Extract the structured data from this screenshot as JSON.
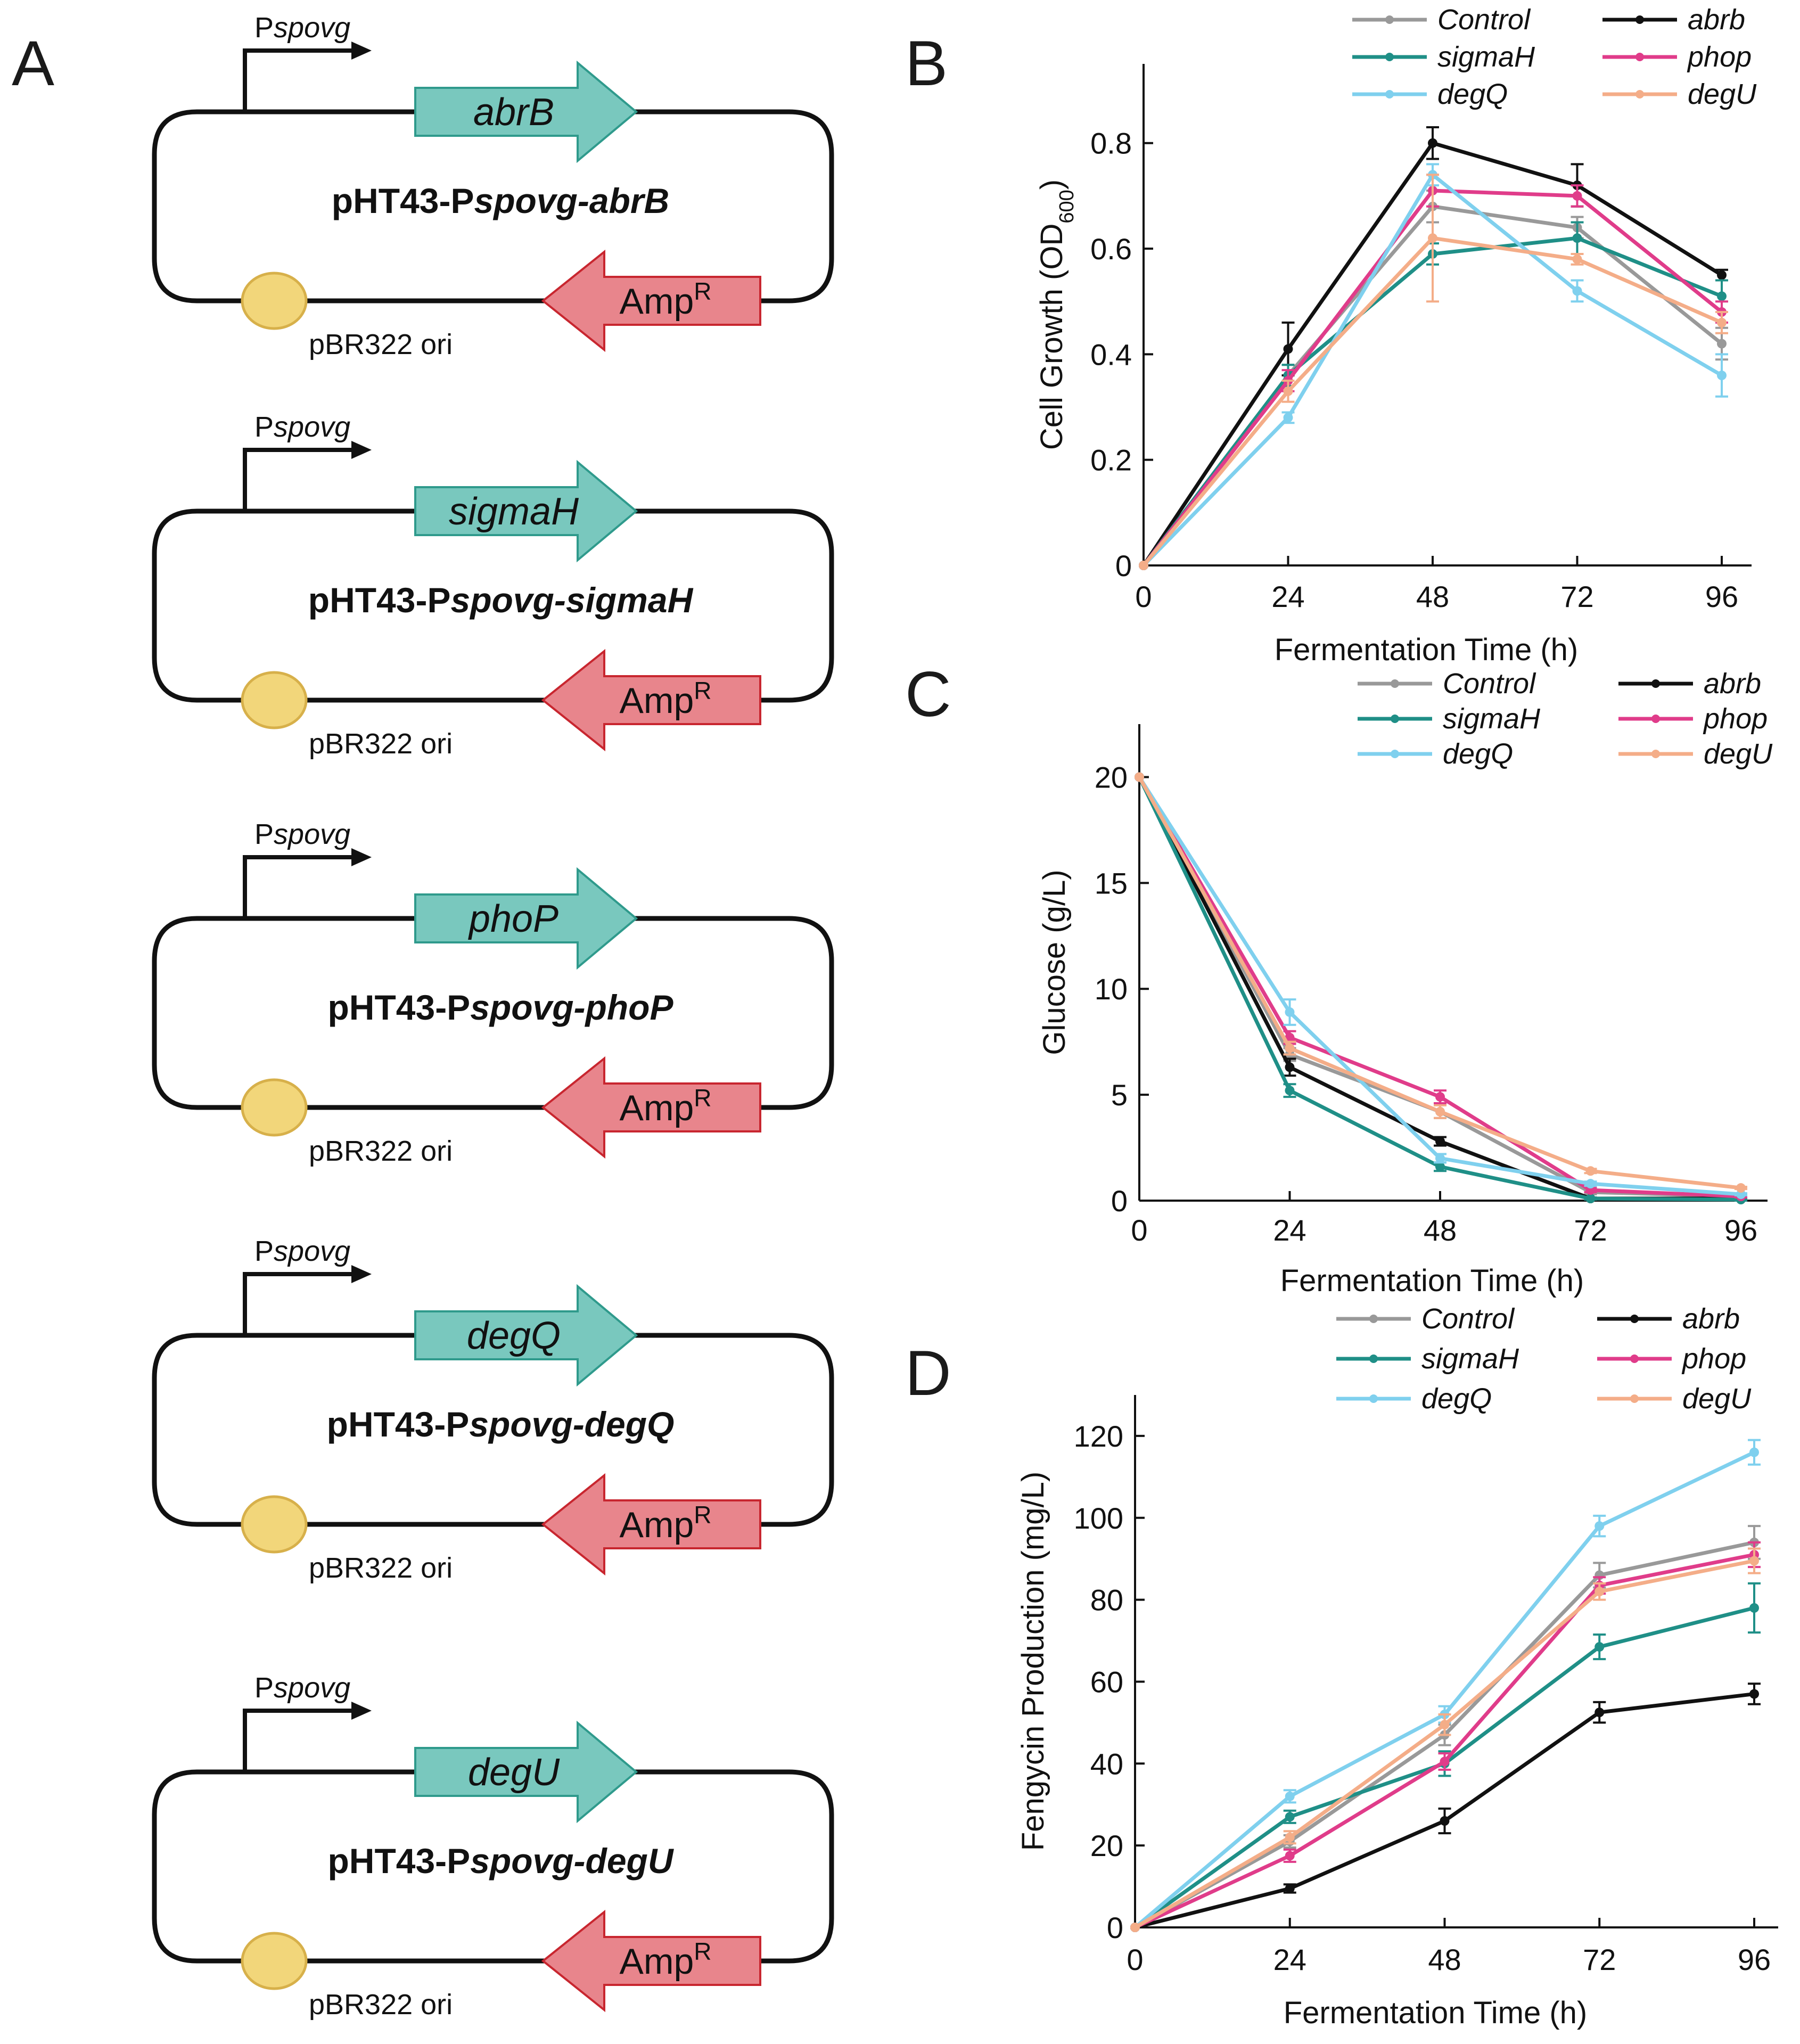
{
  "panel_labels": {
    "A": "A",
    "B": "B",
    "C": "C",
    "D": "D"
  },
  "constructs": [
    {
      "promoter": "spovg",
      "gene": "abrB",
      "plasmid_prefix": "pHT43-P",
      "plasmid_gene": "spovg-abrB",
      "marker": "Amp",
      "marker_sup": "R",
      "ori": "pBR322 ori"
    },
    {
      "promoter": "spovg",
      "gene": "sigmaH",
      "plasmid_prefix": "pHT43-P",
      "plasmid_gene": "spovg-sigmaH",
      "marker": "Amp",
      "marker_sup": "R",
      "ori": "pBR322 ori"
    },
    {
      "promoter": "spovg",
      "gene": "phoP",
      "plasmid_prefix": "pHT43-P",
      "plasmid_gene": "spovg-phoP",
      "marker": "Amp",
      "marker_sup": "R",
      "ori": "pBR322 ori"
    },
    {
      "promoter": "spovg",
      "gene": "degQ",
      "plasmid_prefix": "pHT43-P",
      "plasmid_gene": "spovg-degQ",
      "marker": "Amp",
      "marker_sup": "R",
      "ori": "pBR322 ori"
    },
    {
      "promoter": "spovg",
      "gene": "degU",
      "plasmid_prefix": "pHT43-P",
      "plasmid_gene": "spovg-degU",
      "marker": "Amp",
      "marker_sup": "R",
      "ori": "pBR322 ori"
    }
  ],
  "colors": {
    "gene_fill": "#79c8be",
    "gene_stroke": "#2f9a8c",
    "amp_fill": "#e8858c",
    "amp_stroke": "#c8262f",
    "ori_fill": "#f2d67a",
    "ori_stroke": "#d7b04a",
    "Control": "#999999",
    "abrb": "#111111",
    "sigmaH": "#1f8f87",
    "phop": "#e03c8a",
    "degQ": "#7fd0ee",
    "degU": "#f4ad88"
  },
  "chart_data": [
    {
      "panel": "B",
      "type": "line",
      "x": [
        0,
        24,
        48,
        72,
        96
      ],
      "xlabel": "Fermentation Time (h)",
      "ylabel": "Cell Growth (OD",
      "ylabel_sub": "600",
      "ylabel_close": ")",
      "xlim": [
        0,
        100
      ],
      "ylim": [
        0,
        0.95
      ],
      "xticks": [
        0,
        24,
        48,
        72,
        96
      ],
      "yticks": [
        0,
        0.2,
        0.4,
        0.6,
        0.8
      ],
      "ytick_labels": [
        "0",
        "0.2",
        "0.4",
        "0.6",
        "0.8"
      ],
      "series": [
        {
          "name": "Control",
          "values": [
            0,
            0.36,
            0.68,
            0.64,
            0.42
          ],
          "err": [
            0,
            0.02,
            0.03,
            0.02,
            0.03
          ]
        },
        {
          "name": "abrb",
          "values": [
            0,
            0.41,
            0.8,
            0.72,
            0.55
          ],
          "err": [
            0,
            0.05,
            0.03,
            0.04,
            0.01
          ]
        },
        {
          "name": "sigmaH",
          "values": [
            0,
            0.36,
            0.59,
            0.62,
            0.51
          ],
          "err": [
            0,
            0.02,
            0.02,
            0.03,
            0.03
          ]
        },
        {
          "name": "phop",
          "values": [
            0,
            0.35,
            0.71,
            0.7,
            0.48
          ],
          "err": [
            0,
            0.02,
            0.03,
            0.02,
            0.02
          ]
        },
        {
          "name": "degQ",
          "values": [
            0,
            0.28,
            0.74,
            0.52,
            0.36
          ],
          "err": [
            0,
            0.01,
            0.02,
            0.02,
            0.04
          ]
        },
        {
          "name": "degU",
          "values": [
            0,
            0.33,
            0.62,
            0.58,
            0.46
          ],
          "err": [
            0,
            0.02,
            0.12,
            0.01,
            0.02
          ]
        }
      ]
    },
    {
      "panel": "C",
      "type": "line",
      "x": [
        0,
        24,
        48,
        72,
        96
      ],
      "xlabel": "Fermentation Time (h)",
      "ylabel": "Glucose (g/L)",
      "xlim": [
        0,
        100
      ],
      "ylim": [
        0,
        22.5
      ],
      "xticks": [
        0,
        24,
        48,
        72,
        96
      ],
      "yticks": [
        0,
        5,
        10,
        15,
        20
      ],
      "ytick_labels": [
        "0",
        "5",
        "10",
        "15",
        "20"
      ],
      "series": [
        {
          "name": "Control",
          "values": [
            20,
            6.9,
            4.2,
            0.4,
            0.2
          ],
          "err": [
            0,
            0.3,
            0.3,
            0.1,
            0.1
          ]
        },
        {
          "name": "abrb",
          "values": [
            20,
            6.3,
            2.8,
            0.1,
            0.1
          ],
          "err": [
            0,
            0.4,
            0.2,
            0.05,
            0.05
          ]
        },
        {
          "name": "sigmaH",
          "values": [
            20,
            5.2,
            1.6,
            0.1,
            0.05
          ],
          "err": [
            0,
            0.3,
            0.2,
            0.05,
            0.05
          ]
        },
        {
          "name": "phop",
          "values": [
            20,
            7.7,
            4.9,
            0.5,
            0.2
          ],
          "err": [
            0,
            0.3,
            0.3,
            0.1,
            0.05
          ]
        },
        {
          "name": "degQ",
          "values": [
            20,
            8.9,
            2.0,
            0.8,
            0.3
          ],
          "err": [
            0,
            0.6,
            0.2,
            0.1,
            0.05
          ]
        },
        {
          "name": "degU",
          "values": [
            20,
            7.2,
            4.2,
            1.4,
            0.6
          ],
          "err": [
            0,
            0.3,
            0.3,
            0.1,
            0.05
          ]
        }
      ]
    },
    {
      "panel": "D",
      "type": "line",
      "x": [
        0,
        24,
        48,
        72,
        96
      ],
      "xlabel": "Fermentation Time (h)",
      "ylabel": "Fengycin Production (mg/L)",
      "xlim": [
        0,
        100
      ],
      "ylim": [
        0,
        130
      ],
      "xticks": [
        0,
        24,
        48,
        72,
        96
      ],
      "yticks": [
        0,
        20,
        40,
        60,
        80,
        100,
        120
      ],
      "ytick_labels": [
        "0",
        "20",
        "40",
        "60",
        "80",
        "100",
        "120"
      ],
      "series": [
        {
          "name": "Control",
          "values": [
            0,
            21,
            47,
            86,
            94
          ],
          "err": [
            0,
            1.5,
            2.5,
            3,
            4
          ]
        },
        {
          "name": "abrb",
          "values": [
            0,
            9.5,
            26,
            52.5,
            57
          ],
          "err": [
            0,
            1,
            3,
            2.5,
            2.5
          ]
        },
        {
          "name": "sigmaH",
          "values": [
            0,
            27,
            40,
            68.5,
            78
          ],
          "err": [
            0,
            1.5,
            3,
            3,
            6
          ]
        },
        {
          "name": "phop",
          "values": [
            0,
            17.5,
            40.5,
            83.5,
            91
          ],
          "err": [
            0,
            1.5,
            2,
            2,
            3
          ]
        },
        {
          "name": "degQ",
          "values": [
            0,
            32,
            52,
            98,
            116
          ],
          "err": [
            0,
            1.5,
            2,
            2.5,
            3
          ]
        },
        {
          "name": "degU",
          "values": [
            0,
            22,
            49.5,
            82,
            89.5
          ],
          "err": [
            0,
            1.5,
            2.5,
            2,
            3
          ]
        }
      ]
    }
  ]
}
